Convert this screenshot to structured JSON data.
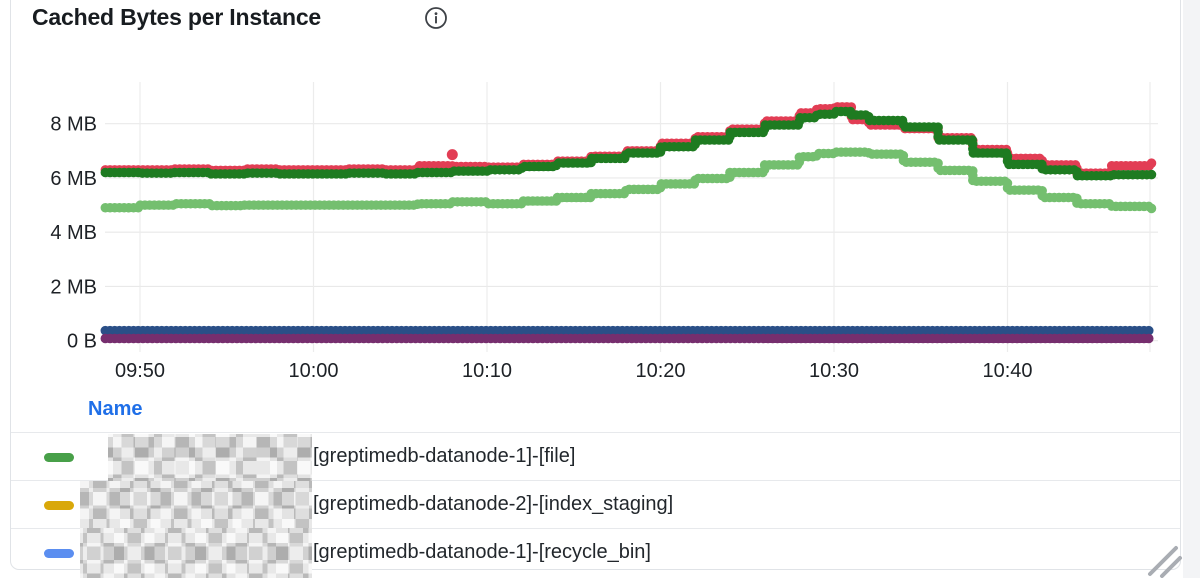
{
  "panel": {
    "title": "Cached Bytes per Instance",
    "info_icon": "info-circle-icon"
  },
  "chart_data": {
    "type": "line",
    "title": "Cached Bytes per Instance",
    "unit": "bytes",
    "grid": true,
    "legend_position": "bottom-table",
    "y_ticks": [
      {
        "label": "0 B",
        "value": 0
      },
      {
        "label": "2 MB",
        "value": 2
      },
      {
        "label": "4 MB",
        "value": 4
      },
      {
        "label": "6 MB",
        "value": 6
      },
      {
        "label": "8 MB",
        "value": 8
      }
    ],
    "x_ticks": [
      {
        "label": "09:50",
        "minute": 50
      },
      {
        "label": "10:00",
        "minute": 60
      },
      {
        "label": "10:10",
        "minute": 70
      },
      {
        "label": "10:20",
        "minute": 80
      },
      {
        "label": "10:30",
        "minute": 90
      },
      {
        "label": "10:40",
        "minute": 100
      }
    ],
    "x_range_minutes": [
      48,
      108.3
    ],
    "y_range_mb": [
      0,
      9.6
    ],
    "x_minutes": [
      48,
      50,
      52,
      54,
      56,
      58,
      60,
      62,
      64,
      66,
      68,
      70,
      72,
      74,
      76,
      78,
      80,
      82,
      84,
      86,
      88,
      89,
      90,
      91,
      92,
      94,
      96,
      98,
      100,
      102,
      104,
      106,
      108.3
    ],
    "series": [
      {
        "name": "red",
        "color": "#e23d54",
        "values": [
          6.3,
          6.3,
          6.33,
          6.28,
          6.33,
          6.3,
          6.3,
          6.33,
          6.3,
          6.45,
          6.42,
          6.4,
          6.5,
          6.62,
          6.8,
          7.0,
          7.28,
          7.52,
          7.8,
          8.1,
          8.4,
          8.55,
          8.62,
          8.15,
          7.95,
          7.82,
          7.48,
          7.05,
          6.72,
          6.48,
          6.18,
          6.45,
          6.55
        ]
      },
      {
        "name": "dark-green",
        "color": "#1e7b21",
        "values": [
          6.2,
          6.18,
          6.2,
          6.15,
          6.18,
          6.15,
          6.15,
          6.18,
          6.15,
          6.2,
          6.25,
          6.3,
          6.42,
          6.55,
          6.72,
          6.92,
          7.15,
          7.4,
          7.68,
          7.95,
          8.22,
          8.35,
          8.45,
          8.32,
          8.12,
          7.88,
          7.4,
          6.92,
          6.5,
          6.3,
          6.08,
          6.12,
          6.18
        ]
      },
      {
        "name": "light-green",
        "color": "#74bf6f",
        "values": [
          4.9,
          5.0,
          5.05,
          4.98,
          5.0,
          5.0,
          5.0,
          5.0,
          5.0,
          5.05,
          5.12,
          5.05,
          5.15,
          5.28,
          5.42,
          5.58,
          5.78,
          5.98,
          6.2,
          6.48,
          6.78,
          6.9,
          6.95,
          6.95,
          6.88,
          6.58,
          6.28,
          5.88,
          5.55,
          5.28,
          5.05,
          4.95,
          4.85
        ]
      },
      {
        "name": "navy",
        "color": "#2a4f87",
        "x": [
          48,
          108.3
        ],
        "values": [
          0.37,
          0.37
        ]
      },
      {
        "name": "purple",
        "color": "#762e6e",
        "x": [
          48,
          108.3
        ],
        "values": [
          0.08,
          0.08
        ]
      }
    ],
    "outlier": {
      "series": "red",
      "minute": 68,
      "value": 6.86,
      "color": "#e23d54"
    }
  },
  "legend": {
    "name_header": "Name",
    "rows": [
      {
        "color": "#48a049",
        "label": "[greptimedb-datanode-1]-[file]",
        "redacted_prefix": true
      },
      {
        "color": "#d9a80a",
        "label": "[greptimedb-datanode-2]-[index_staging]",
        "redacted_prefix": true
      },
      {
        "color": "#5b8ef0",
        "label": "[greptimedb-datanode-1]-[recycle_bin]",
        "redacted_prefix": true
      }
    ]
  }
}
